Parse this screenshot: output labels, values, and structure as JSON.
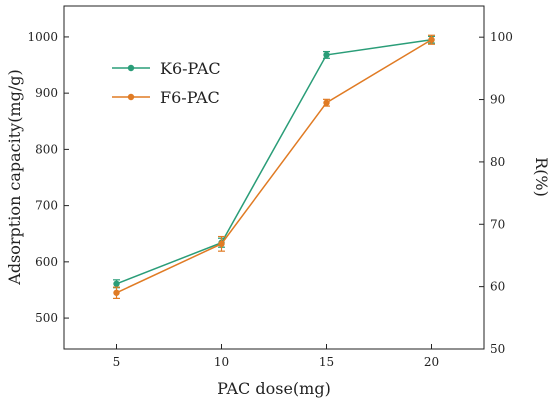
{
  "chart_data": {
    "type": "line",
    "xlabel": "PAC dose(mg)",
    "ylabel": "Adsorption capacity(mg/g)",
    "y2label": "R(%)",
    "x": [
      5,
      10,
      15,
      20
    ],
    "xlim": [
      2.5,
      22.5
    ],
    "ylim": [
      445,
      1055
    ],
    "y2lim": [
      50,
      105
    ],
    "xticks": [
      "5",
      "10",
      "15",
      "20"
    ],
    "yticks": [
      "500",
      "600",
      "700",
      "800",
      "900",
      "1000"
    ],
    "y2ticks": [
      "50",
      "60",
      "70",
      "80",
      "90",
      "100"
    ],
    "legend_position": "upper-left",
    "series": [
      {
        "name": "K6-PAC",
        "color": "#2a9d78",
        "values": [
          561,
          634,
          968,
          995
        ],
        "errors": [
          7,
          8,
          6,
          6
        ]
      },
      {
        "name": "F6-PAC",
        "color": "#e07b24",
        "values": [
          545,
          632,
          883,
          995
        ],
        "errors": [
          10,
          13,
          6,
          8
        ]
      }
    ]
  }
}
